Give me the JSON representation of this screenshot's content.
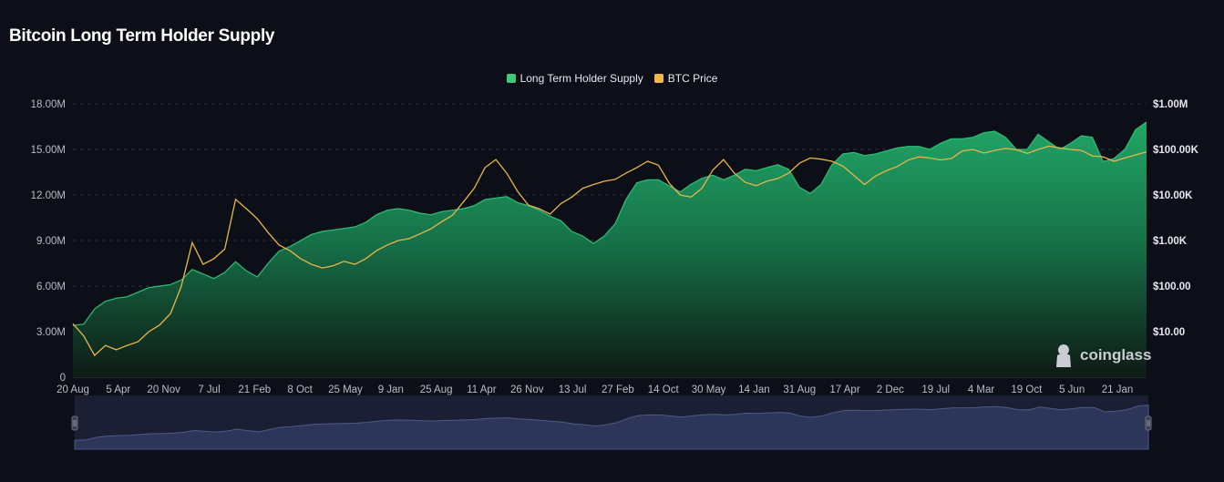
{
  "title": "Bitcoin Long Term Holder Supply",
  "legend": [
    {
      "label": "Long Term Holder Supply",
      "color": "#3fc97a"
    },
    {
      "label": "BTC Price",
      "color": "#f0b84a"
    }
  ],
  "watermark": "coinglass",
  "colors": {
    "background": "#0c0f17",
    "area_top": "#1f9a60",
    "area_bottom": "#0c1713",
    "price": "#e8b54a",
    "navigator": "#2a3354"
  },
  "chart_data": {
    "type": "area",
    "title": "Bitcoin Long Term Holder Supply",
    "x_ticks": [
      "20 Aug",
      "5 Apr",
      "20 Nov",
      "7 Jul",
      "21 Feb",
      "8 Oct",
      "25 May",
      "9 Jan",
      "25 Aug",
      "11 Apr",
      "26 Nov",
      "13 Jul",
      "27 Feb",
      "14 Oct",
      "30 May",
      "14 Jan",
      "31 Aug",
      "17 Apr",
      "2 Dec",
      "19 Jul",
      "4 Mar",
      "19 Oct",
      "5 Jun",
      "21 Jan"
    ],
    "y_left": {
      "ticks": [
        "0",
        "3.00M",
        "6.00M",
        "9.00M",
        "12.00M",
        "15.00M",
        "18.00M"
      ],
      "range": [
        0,
        18000000
      ]
    },
    "y_right": {
      "ticks": [
        "$10.00",
        "$100.00",
        "$1.00K",
        "$10.00K",
        "$100.00K",
        "$1.00M"
      ],
      "scale": "log",
      "range": [
        1,
        1000000
      ]
    },
    "grid": true,
    "legend_position": "top-center",
    "series": [
      {
        "name": "Long Term Holder Supply",
        "axis": "left",
        "values": [
          3.4,
          3.5,
          4.5,
          5.0,
          5.2,
          5.3,
          5.6,
          5.9,
          6.0,
          6.1,
          6.4,
          7.1,
          6.8,
          6.5,
          6.9,
          7.6,
          7.0,
          6.6,
          7.5,
          8.3,
          8.6,
          9.0,
          9.4,
          9.6,
          9.7,
          9.8,
          9.9,
          10.2,
          10.7,
          11.0,
          11.1,
          11.0,
          10.8,
          10.7,
          10.9,
          11.0,
          11.1,
          11.3,
          11.7,
          11.8,
          11.9,
          11.5,
          11.3,
          11.0,
          10.6,
          10.3,
          9.6,
          9.3,
          8.8,
          9.3,
          10.1,
          11.7,
          12.8,
          13.0,
          13.0,
          12.6,
          12.2,
          12.7,
          13.1,
          13.3,
          13.0,
          13.3,
          13.7,
          13.6,
          13.8,
          14.0,
          13.7,
          12.5,
          12.1,
          12.7,
          14.0,
          14.7,
          14.8,
          14.6,
          14.7,
          14.9,
          15.1,
          15.2,
          15.2,
          15.0,
          15.4,
          15.7,
          15.7,
          15.8,
          16.1,
          16.2,
          15.8,
          15.0,
          15.0,
          16.0,
          15.5,
          15.0,
          15.4,
          15.9,
          15.8,
          14.2,
          14.4,
          15.0,
          16.3,
          16.8
        ]
      },
      {
        "name": "BTC Price",
        "axis": "right",
        "values": [
          15,
          8,
          3,
          5,
          4,
          5,
          6,
          10,
          14,
          25,
          100,
          900,
          300,
          400,
          650,
          8000,
          5000,
          3000,
          1500,
          800,
          600,
          400,
          300,
          250,
          280,
          350,
          300,
          400,
          600,
          800,
          1000,
          1100,
          1400,
          1800,
          2600,
          3600,
          7000,
          14000,
          40000,
          60000,
          30000,
          12000,
          6000,
          5000,
          3800,
          6500,
          9000,
          14000,
          17000,
          20000,
          22000,
          30000,
          40000,
          55000,
          45000,
          18000,
          10000,
          9000,
          14000,
          35000,
          60000,
          30000,
          19000,
          16000,
          20000,
          23000,
          30000,
          50000,
          65000,
          61000,
          55000,
          43000,
          27000,
          17000,
          26000,
          34000,
          42000,
          58000,
          69000,
          65000,
          59000,
          63000,
          92000,
          100000,
          83000,
          95000,
          105000,
          98000,
          82000,
          100000,
          118000,
          108000,
          100000,
          95000,
          72000,
          69000,
          55000,
          65000,
          76000,
          88000
        ]
      }
    ]
  }
}
